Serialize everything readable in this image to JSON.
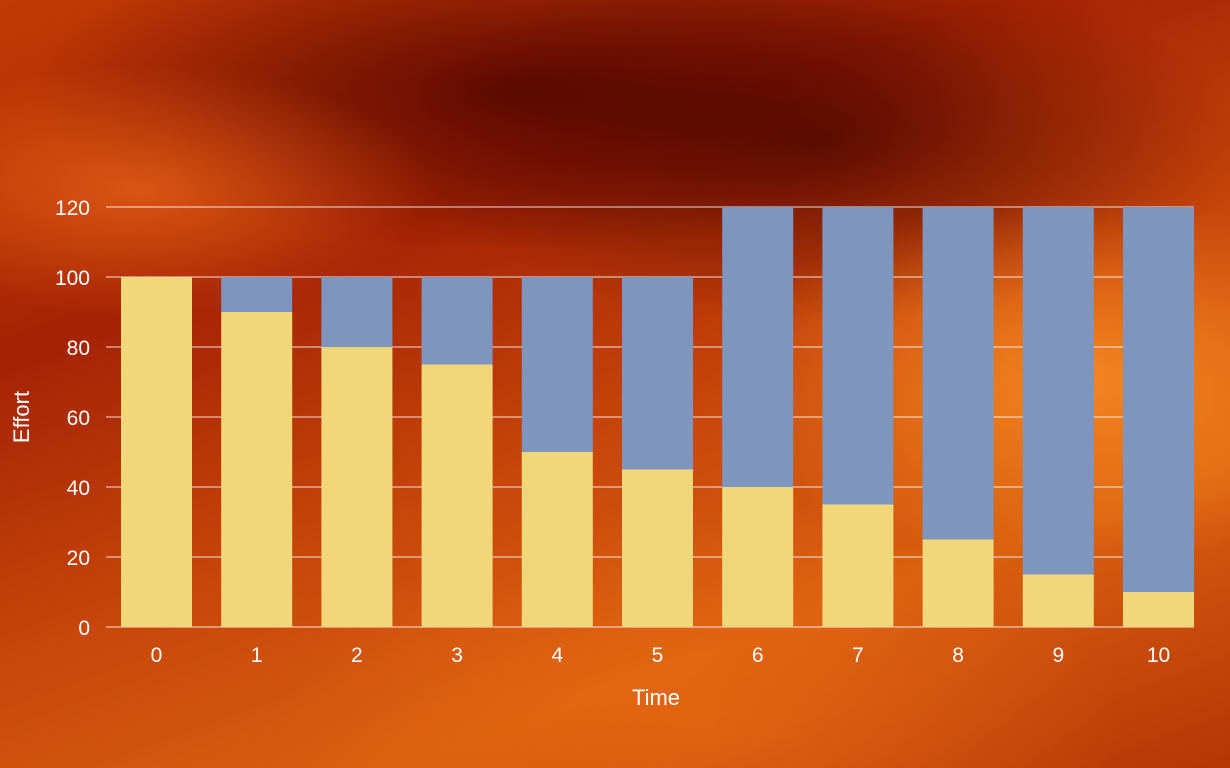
{
  "chart_data": {
    "type": "bar",
    "stacked": true,
    "categories": [
      "0",
      "1",
      "2",
      "3",
      "4",
      "5",
      "6",
      "7",
      "8",
      "9",
      "10"
    ],
    "series": [
      {
        "color": "#f1d779",
        "values": [
          100,
          90,
          80,
          75,
          50,
          45,
          40,
          35,
          25,
          15,
          10
        ]
      },
      {
        "color": "#7e95bd",
        "values": [
          0,
          10,
          20,
          25,
          50,
          55,
          80,
          85,
          95,
          105,
          110
        ]
      }
    ],
    "xlabel": "Time",
    "ylabel": "Effort",
    "ylim": [
      0,
      120
    ],
    "yticks": [
      0,
      20,
      40,
      60,
      80,
      100,
      120
    ],
    "grid": true,
    "legend": "none"
  }
}
